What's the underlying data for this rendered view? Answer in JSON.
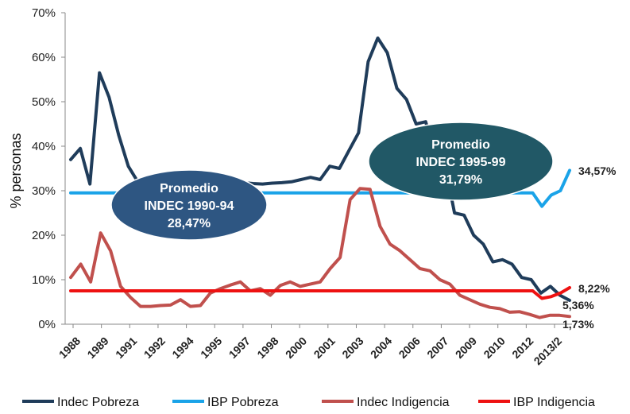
{
  "chart_data": {
    "type": "line",
    "ylabel": "% personas",
    "ylim": [
      0,
      70
    ],
    "y_ticks": [
      "0%",
      "10%",
      "20%",
      "30%",
      "40%",
      "50%",
      "60%",
      "70%"
    ],
    "grid": false,
    "legend_position": "bottom",
    "x_labels": [
      "1988",
      "1989",
      "1991",
      "1992",
      "1994",
      "1995",
      "1997",
      "1998",
      "2000",
      "2001",
      "2003",
      "2004",
      "2006",
      "2007",
      "2009",
      "2010",
      "2012",
      "2013/2"
    ],
    "series": [
      {
        "name": "Indec Pobreza",
        "color": "#1f3c5a",
        "values": [
          37,
          39.5,
          31.5,
          56.5,
          51,
          42.5,
          35.5,
          32,
          31.5,
          31.5,
          31.8,
          31.5,
          31.6,
          31.7,
          31.5,
          31.8,
          31.6,
          31.5,
          31.8,
          31.6,
          31.5,
          31.7,
          31.8,
          32,
          32.5,
          33,
          32.5,
          35.5,
          35,
          39,
          43,
          59,
          64.3,
          61,
          53,
          50.5,
          45,
          45.5,
          38,
          36,
          25,
          24.5,
          20,
          18,
          14,
          14.5,
          13.5,
          10.5,
          10,
          7,
          8.5,
          6.5,
          5.36
        ]
      },
      {
        "name": "IBP Pobreza",
        "color": "#1aa3e8",
        "values": [
          29.5,
          29.5,
          29.5,
          29.5,
          29.5,
          29.5,
          29.5,
          29.5,
          29.5,
          29.5,
          29.5,
          29.5,
          29.5,
          29.5,
          29.5,
          29.5,
          29.5,
          29.5,
          29.5,
          29.5,
          29.5,
          29.5,
          29.5,
          29.5,
          29.5,
          29.5,
          29.5,
          29.5,
          29.5,
          29.5,
          29.5,
          29.5,
          29.5,
          29.5,
          29.5,
          29.5,
          29.5,
          29.5,
          29.5,
          29.5,
          29.5,
          29.5,
          29.5,
          29.5,
          29.5,
          29.5,
          29.5,
          29.5,
          29.5,
          29.5,
          29.5,
          26.5,
          29,
          30,
          34.57
        ]
      },
      {
        "name": "Indec Indigencia",
        "color": "#c0504d",
        "values": [
          10.5,
          13.5,
          9.5,
          20.5,
          16.5,
          8.5,
          6,
          4,
          4,
          4.2,
          4.3,
          5.5,
          4,
          4.2,
          7,
          8,
          8.8,
          9.5,
          7.5,
          8,
          6.5,
          8.7,
          9.5,
          8.5,
          9,
          9.5,
          12.5,
          15,
          28,
          30.5,
          30.3,
          22,
          18,
          16.5,
          14.5,
          12.5,
          12,
          10,
          9,
          6.5,
          5.5,
          4.5,
          3.8,
          3.5,
          2.7,
          2.8,
          2.2,
          1.5,
          2,
          2,
          1.73
        ]
      },
      {
        "name": "IBP Indigencia",
        "color": "#ee1111",
        "values": [
          7.5,
          7.5,
          7.5,
          7.5,
          7.5,
          7.5,
          7.5,
          7.5,
          7.5,
          7.5,
          7.5,
          7.5,
          7.5,
          7.5,
          7.5,
          7.5,
          7.5,
          7.5,
          7.5,
          7.5,
          7.5,
          7.5,
          7.5,
          7.5,
          7.5,
          7.5,
          7.5,
          7.5,
          7.5,
          7.5,
          7.5,
          7.5,
          7.5,
          7.5,
          7.5,
          7.5,
          7.5,
          7.5,
          7.5,
          7.5,
          7.5,
          7.5,
          7.5,
          7.5,
          7.5,
          7.5,
          7.5,
          7.5,
          7.5,
          7.5,
          7.5,
          5.8,
          6.2,
          7,
          8.22
        ]
      }
    ],
    "end_labels": [
      {
        "series": "IBP Pobreza",
        "text": "34,57%"
      },
      {
        "series": "IBP Indigencia",
        "text": "8,22%"
      },
      {
        "series": "Indec Pobreza",
        "text": "5,36%"
      },
      {
        "series": "Indec Indigencia",
        "text": "1,73%"
      }
    ],
    "annotations": [
      {
        "lines": [
          "Promedio",
          "INDEC 1990-94",
          "28,47%"
        ],
        "color": "#2e5682"
      },
      {
        "lines": [
          "Promedio",
          "INDEC 1995-99",
          "31,79%"
        ],
        "color": "#215866"
      }
    ]
  }
}
